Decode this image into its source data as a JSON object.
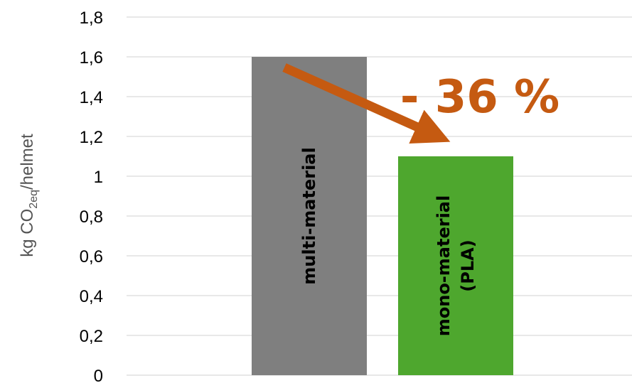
{
  "chart_data": {
    "type": "bar",
    "categories": [
      "multi-material",
      "mono-material (PLA)"
    ],
    "category_label_lines": [
      [
        "multi-material"
      ],
      [
        "mono-material",
        "(PLA)"
      ]
    ],
    "values": [
      1.6,
      1.1
    ],
    "bar_colors": [
      "#7f7f7f",
      "#4ea72e"
    ],
    "ylim": [
      0,
      1.8
    ],
    "yticks": [
      "0",
      "0,2",
      "0,4",
      "0,6",
      "0,8",
      "1",
      "1,2",
      "1,4",
      "1,6",
      "1,8"
    ],
    "ylabel": {
      "prefix": "kg CO",
      "subscript": "2eq",
      "suffix": "/helmet"
    },
    "grid": true,
    "annotation": {
      "text": "- 36 %",
      "color": "#c55a11"
    }
  }
}
